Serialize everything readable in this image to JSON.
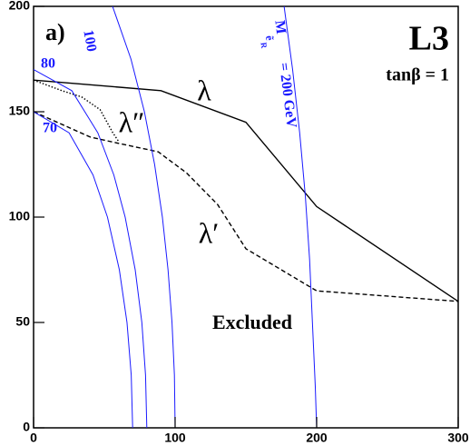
{
  "chart_data": {
    "type": "line",
    "xlim": [
      0,
      300
    ],
    "xticks": [
      0,
      100,
      200,
      300
    ],
    "ylim": [
      0,
      200
    ],
    "yticks": [
      0,
      50,
      100,
      150,
      200
    ],
    "series": [
      {
        "name": "λ",
        "color": "#000000",
        "style": "solid",
        "x": [
          0,
          90,
          150,
          200,
          300
        ],
        "values": [
          165,
          160,
          145,
          105,
          60
        ]
      },
      {
        "name": "λ′",
        "color": "#000000",
        "style": "dashed",
        "x": [
          0,
          40,
          60,
          88,
          108,
          130,
          150,
          200,
          300
        ],
        "values": [
          150,
          138,
          135,
          131,
          121,
          106,
          85,
          65,
          60
        ]
      },
      {
        "name": "λ″",
        "color": "#000000",
        "style": "dotted",
        "x": [
          0,
          20,
          34,
          47,
          56,
          60
        ],
        "values": [
          165,
          160,
          157,
          151,
          140,
          136
        ]
      },
      {
        "name": "70",
        "color": "#1a1aff",
        "style": "solid",
        "x": [
          0,
          25.1,
          42,
          52.2,
          60.6,
          66,
          69,
          70
        ],
        "values": [
          150,
          140,
          120,
          100,
          75,
          50,
          25,
          0
        ]
      },
      {
        "name": "80",
        "color": "#1a1aff",
        "style": "solid",
        "x": [
          0,
          27,
          45.4,
          56.7,
          64.7,
          71.8,
          76.5,
          79.1,
          80
        ],
        "values": [
          170,
          160,
          140,
          120,
          100,
          75,
          50,
          25,
          0
        ]
      },
      {
        "name": "100",
        "color": "#1a1aff",
        "style": "solid",
        "x": [
          55.8,
          68.8,
          78.3,
          85.5,
          91,
          95,
          97.8,
          99.5,
          100
        ],
        "values": [
          200,
          175,
          150,
          125,
          100,
          75,
          50,
          25,
          0
        ]
      },
      {
        "name": "= 200 GeV",
        "color": "#1a1aff",
        "style": "solid",
        "x": [
          177,
          183,
          188,
          192,
          195,
          197,
          199,
          200
        ],
        "values": [
          200,
          170,
          140,
          110,
          80,
          50,
          20,
          0
        ]
      }
    ],
    "annotations": [
      {
        "text": "a)"
      },
      {
        "text": "L3"
      },
      {
        "text": "tanβ = 1"
      },
      {
        "text": "Excluded"
      },
      {
        "text": "M"
      },
      {
        "text": "ẽ"
      },
      {
        "text": "R"
      }
    ]
  }
}
